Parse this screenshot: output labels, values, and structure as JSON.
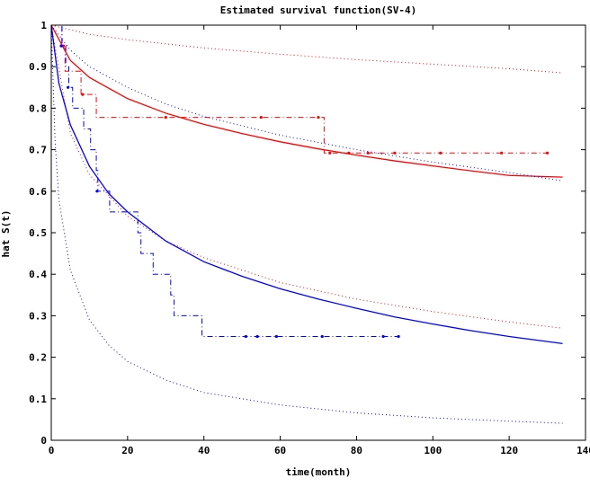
{
  "chart_data": {
    "type": "line",
    "title": "Estimated survival function(SV-4)",
    "xlabel": "time(month)",
    "ylabel": "hat S(t)",
    "xlim": [
      0,
      140
    ],
    "ylim": [
      0,
      1
    ],
    "x_ticks": [
      0,
      20,
      40,
      60,
      80,
      100,
      120,
      140
    ],
    "y_ticks": [
      0,
      0.1,
      0.2,
      0.3,
      0.4,
      0.5,
      0.6,
      0.7,
      0.8,
      0.9,
      1
    ],
    "y_tick_labels": [
      "0",
      "0.1",
      "0.2",
      "0.3",
      "0.4",
      "0.5",
      "0.6",
      "0.7",
      "0.8",
      "0.9",
      "1"
    ],
    "grid": false,
    "legend": "none",
    "series": [
      {
        "style": "step-dashdot",
        "color": "#ff0000",
        "x": [
          0,
          2.8,
          3.2,
          3.8,
          8,
          12,
          71.5,
          134
        ],
        "y": [
          1,
          0.944,
          0.889,
          0.889,
          0.833,
          0.778,
          0.692,
          0.692
        ],
        "steps": [
          [
            0,
            1
          ],
          [
            2.8,
            0.944
          ],
          [
            3.6,
            0.889
          ],
          [
            7.8,
            0.833
          ],
          [
            11.8,
            0.778
          ],
          [
            71.5,
            0.692
          ],
          [
            130,
            0.692
          ]
        ],
        "censor_marks_x": [
          3.2,
          8.2,
          30,
          55,
          70,
          73,
          78,
          83,
          90,
          102,
          118,
          130
        ],
        "censor_marks_y": [
          0.95,
          0.833,
          0.778,
          0.778,
          0.778,
          0.692,
          0.692,
          0.692,
          0.692,
          0.692,
          0.692,
          0.692
        ]
      },
      {
        "style": "solid",
        "color": "#ff0000",
        "x": [
          0,
          5,
          10,
          20,
          30,
          40,
          50,
          60,
          70,
          80,
          90,
          100,
          110,
          120,
          134
        ],
        "y": [
          1,
          0.915,
          0.874,
          0.823,
          0.788,
          0.761,
          0.739,
          0.719,
          0.702,
          0.687,
          0.673,
          0.661,
          0.649,
          0.638,
          0.634
        ]
      },
      {
        "style": "dotted-upper",
        "color": "#ff0000",
        "x": [
          0,
          10,
          20,
          40,
          60,
          80,
          100,
          120,
          134
        ],
        "y": [
          1,
          0.978,
          0.965,
          0.945,
          0.93,
          0.917,
          0.906,
          0.895,
          0.885
        ]
      },
      {
        "style": "dotted-lower",
        "color": "#ff0000",
        "x": [
          0,
          5,
          10,
          20,
          30,
          40,
          60,
          80,
          100,
          120,
          134
        ],
        "y": [
          1,
          0.74,
          0.64,
          0.54,
          0.48,
          0.44,
          0.38,
          0.34,
          0.31,
          0.285,
          0.27
        ]
      },
      {
        "style": "step-dashdot",
        "color": "#0000ff",
        "x": [
          0,
          2,
          4,
          5,
          7,
          9,
          11,
          12,
          15,
          22,
          24,
          27,
          30,
          32,
          40,
          92
        ],
        "y": [
          1,
          0.95,
          0.9,
          0.85,
          0.8,
          0.75,
          0.7,
          0.65,
          0.6,
          0.55,
          0.5,
          0.45,
          0.4,
          0.35,
          0.3,
          0.25
        ],
        "steps": [
          [
            0,
            1
          ],
          [
            2.8,
            0.95
          ],
          [
            3.8,
            0.9
          ],
          [
            4.6,
            0.85
          ],
          [
            5.6,
            0.8
          ],
          [
            8.5,
            0.75
          ],
          [
            10.3,
            0.7
          ],
          [
            11.8,
            0.65
          ],
          [
            12.2,
            0.6
          ],
          [
            15.3,
            0.55
          ],
          [
            22.7,
            0.5
          ],
          [
            23.5,
            0.45
          ],
          [
            26.7,
            0.4
          ],
          [
            31.3,
            0.35
          ],
          [
            32.2,
            0.3
          ],
          [
            39.5,
            0.25
          ],
          [
            92,
            0.25
          ]
        ],
        "censor_marks_x": [
          2.6,
          4.4,
          12.0,
          51,
          54,
          59,
          71,
          87,
          91
        ],
        "censor_marks_y": [
          0.95,
          0.85,
          0.6,
          0.25,
          0.25,
          0.25,
          0.25,
          0.25,
          0.25
        ]
      },
      {
        "style": "solid",
        "color": "#0000ff",
        "x": [
          0,
          2,
          5,
          10,
          15,
          20,
          30,
          40,
          50,
          60,
          70,
          80,
          90,
          100,
          110,
          120,
          134
        ],
        "y": [
          1,
          0.86,
          0.76,
          0.66,
          0.595,
          0.55,
          0.48,
          0.43,
          0.395,
          0.365,
          0.34,
          0.318,
          0.297,
          0.28,
          0.264,
          0.25,
          0.233
        ]
      },
      {
        "style": "dotted-upper",
        "color": "#0000ff",
        "x": [
          0,
          5,
          10,
          20,
          30,
          40,
          60,
          80,
          100,
          120,
          134
        ],
        "y": [
          1,
          0.94,
          0.9,
          0.85,
          0.81,
          0.78,
          0.735,
          0.7,
          0.67,
          0.645,
          0.625
        ]
      },
      {
        "style": "dotted-lower",
        "color": "#0000ff",
        "x": [
          0,
          1,
          2,
          5,
          10,
          15,
          20,
          30,
          40,
          60,
          80,
          100,
          120,
          134
        ],
        "y": [
          1,
          0.72,
          0.58,
          0.41,
          0.29,
          0.23,
          0.19,
          0.145,
          0.115,
          0.085,
          0.066,
          0.054,
          0.046,
          0.041
        ]
      }
    ]
  }
}
